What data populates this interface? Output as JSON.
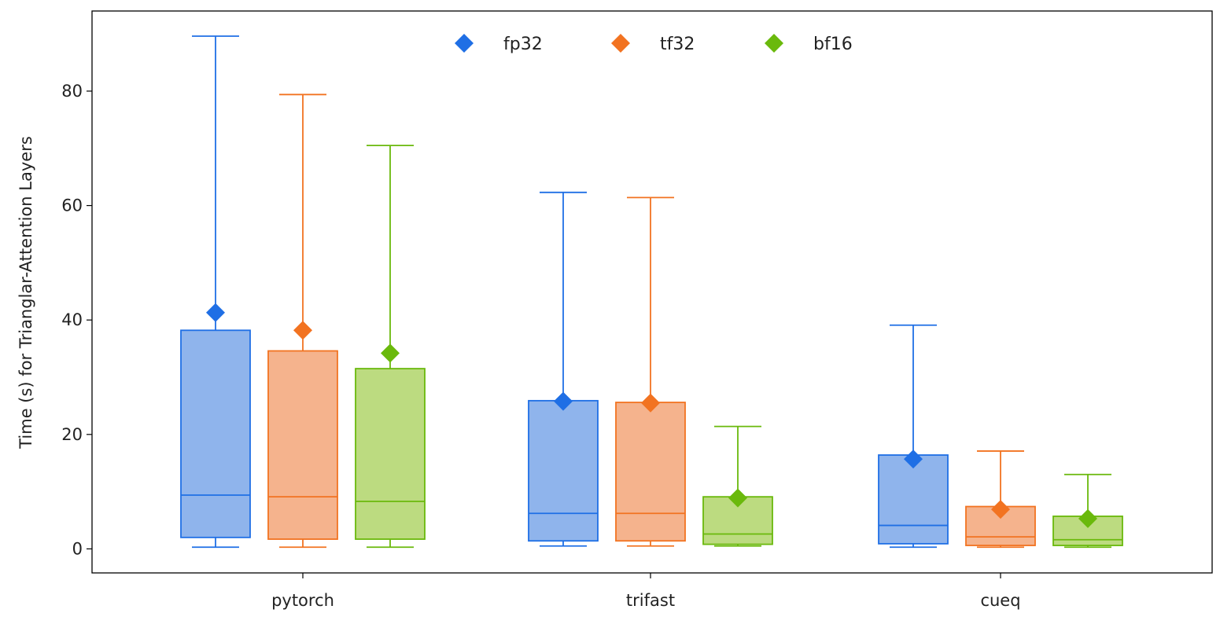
{
  "chart_data": {
    "type": "box",
    "categories": [
      "pytorch",
      "trifast",
      "cueq"
    ],
    "ylabel": "Time (s) for Trianglar-Attention Layers",
    "xlabel": "",
    "ylim": [
      -4.2,
      94
    ],
    "yticks": [
      0,
      20,
      40,
      60,
      80
    ],
    "grid": false,
    "legend_position": "top-center",
    "marker_meaning": "mean",
    "series": [
      {
        "name": "fp32",
        "color": "#1f6fe5",
        "fill": "#8fb4ec",
        "stats": [
          {
            "whislo": 0.3,
            "q1": 2.0,
            "med": 9.4,
            "q3": 38.2,
            "whishi": 89.6,
            "mean": 41.3
          },
          {
            "whislo": 0.5,
            "q1": 1.4,
            "med": 6.2,
            "q3": 25.9,
            "whishi": 62.3,
            "mean": 25.8
          },
          {
            "whislo": 0.3,
            "q1": 0.9,
            "med": 4.1,
            "q3": 16.4,
            "whishi": 39.1,
            "mean": 15.7
          }
        ]
      },
      {
        "name": "tf32",
        "color": "#f27321",
        "fill": "#f5b38d",
        "stats": [
          {
            "whislo": 0.3,
            "q1": 1.7,
            "med": 9.1,
            "q3": 34.6,
            "whishi": 79.4,
            "mean": 38.2
          },
          {
            "whislo": 0.5,
            "q1": 1.4,
            "med": 6.2,
            "q3": 25.6,
            "whishi": 61.4,
            "mean": 25.5
          },
          {
            "whislo": 0.3,
            "q1": 0.6,
            "med": 2.1,
            "q3": 7.4,
            "whishi": 17.1,
            "mean": 6.9
          }
        ]
      },
      {
        "name": "bf16",
        "color": "#6ab90c",
        "fill": "#bcdb80",
        "stats": [
          {
            "whislo": 0.3,
            "q1": 1.7,
            "med": 8.3,
            "q3": 31.5,
            "whishi": 70.5,
            "mean": 34.2
          },
          {
            "whislo": 0.5,
            "q1": 0.8,
            "med": 2.6,
            "q3": 9.1,
            "whishi": 21.4,
            "mean": 8.9
          },
          {
            "whislo": 0.3,
            "q1": 0.6,
            "med": 1.6,
            "q3": 5.7,
            "whishi": 13.0,
            "mean": 5.3
          }
        ]
      }
    ]
  }
}
